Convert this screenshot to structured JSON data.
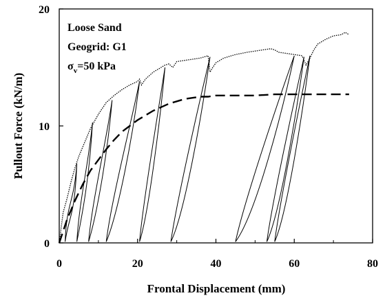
{
  "chart_data": {
    "type": "line",
    "xlabel": "Frontal Displacement (mm)",
    "ylabel": "Pullout Force (kN/m)",
    "xlim": [
      0,
      80
    ],
    "ylim": [
      0,
      20
    ],
    "x_ticks": [
      "0",
      "20",
      "40",
      "60",
      "80"
    ],
    "y_ticks": [
      "0",
      "10",
      "20"
    ],
    "grid": false,
    "annotations": {
      "line1": "Loose Sand",
      "line2": "Geogrid: G1",
      "line3_main": "σ",
      "line3_sub": "v",
      "line3_rest": "=50 kPa"
    },
    "series": [
      {
        "style": "dotted",
        "x": [
          0,
          1,
          2,
          3,
          4,
          5,
          6,
          7,
          8,
          9,
          10,
          11,
          12,
          13,
          14,
          16,
          18,
          20,
          20.5,
          21,
          22,
          24,
          25,
          26,
          27,
          28,
          29,
          30,
          32,
          34,
          36,
          38,
          38.5,
          39,
          40,
          42,
          45,
          48,
          50,
          52,
          54,
          55,
          56,
          58,
          60,
          62,
          63,
          64,
          65,
          66,
          68,
          70,
          72,
          73,
          74
        ],
        "y": [
          0,
          2.6,
          3.8,
          5.2,
          6.4,
          7.4,
          8.2,
          9.0,
          9.8,
          10.4,
          11.0,
          11.5,
          12.0,
          12.3,
          12.6,
          13.1,
          13.5,
          13.8,
          14.0,
          13.5,
          14.0,
          14.6,
          14.8,
          15.0,
          15.2,
          15.3,
          15.0,
          15.5,
          15.6,
          15.7,
          15.8,
          16.0,
          14.6,
          14.9,
          15.4,
          15.8,
          16.1,
          16.3,
          16.4,
          16.5,
          16.6,
          16.5,
          16.3,
          16.2,
          16.1,
          16.0,
          15.2,
          15.8,
          16.5,
          17.0,
          17.4,
          17.7,
          17.8,
          18.0,
          17.8
        ]
      },
      {
        "style": "solid",
        "x": [
          1,
          2,
          3,
          4,
          5,
          6,
          7,
          8,
          9,
          10,
          11,
          12,
          13,
          14,
          15,
          16,
          17,
          18,
          19,
          20,
          21,
          22,
          23,
          24,
          25,
          26,
          27,
          28,
          29,
          30,
          31,
          32,
          33,
          34,
          35,
          36,
          37,
          38,
          39,
          40,
          41,
          42,
          43,
          44,
          45,
          46,
          47,
          48,
          49,
          50,
          51,
          52,
          53,
          54,
          55,
          56,
          57,
          58,
          59,
          60,
          61,
          62,
          63,
          64,
          65,
          66,
          67,
          68,
          69,
          70,
          71,
          72,
          73,
          74
        ],
        "y": [
          2.0,
          3.8,
          5.2,
          6.4,
          7.4,
          8.2,
          9.0,
          9.8,
          10.4,
          11.0,
          11.5,
          12.0,
          12.3,
          12.6,
          12.9,
          13.1,
          13.3,
          13.5,
          13.6,
          13.8,
          14.0,
          14.2,
          14.4,
          14.6,
          14.7,
          14.8,
          14.9,
          15.0,
          15.1,
          15.2,
          15.3,
          15.4,
          15.5,
          15.5,
          15.6,
          15.7,
          15.7,
          15.8,
          15.8,
          15.9,
          15.9,
          16.0,
          16.0,
          16.1,
          16.1,
          16.2,
          16.2,
          16.3,
          16.3,
          16.4,
          16.4,
          16.4,
          16.5,
          16.5,
          16.5,
          16.5,
          16.6,
          16.6,
          16.6,
          16.6,
          16.7,
          16.7,
          16.8,
          16.9,
          17.0,
          17.1,
          17.2,
          17.3,
          17.4,
          17.5,
          17.6,
          17.7,
          17.8,
          17.8
        ]
      },
      {
        "style": "dashed",
        "x": [
          0,
          2,
          4,
          6,
          8,
          10,
          12,
          14,
          16,
          18,
          20,
          22,
          24,
          26,
          28,
          30,
          32,
          34,
          36,
          38,
          40,
          45,
          50,
          55,
          60,
          65,
          70,
          74
        ],
        "y": [
          0,
          2.0,
          3.6,
          5.0,
          6.2,
          7.1,
          8.0,
          8.8,
          9.5,
          10.0,
          10.5,
          10.9,
          11.3,
          11.6,
          11.9,
          12.1,
          12.3,
          12.4,
          12.5,
          12.5,
          12.6,
          12.6,
          12.6,
          12.7,
          12.7,
          12.7,
          12.7,
          12.7
        ]
      }
    ],
    "loops": [
      {
        "x0": 1.5,
        "x1": 4.5,
        "ytop": 6.8
      },
      {
        "x0": 4.5,
        "x1": 8.5,
        "ytop": 10.3
      },
      {
        "x0": 7.5,
        "x1": 13.5,
        "ytop": 12.2
      },
      {
        "x0": 12.0,
        "x1": 20.5,
        "ytop": 13.8
      },
      {
        "x0": 20.5,
        "x1": 27.0,
        "ytop": 15.0
      },
      {
        "x0": 28.5,
        "x1": 38.5,
        "ytop": 15.9
      },
      {
        "x0": 45.0,
        "x1": 60.0,
        "ytop": 16.0
      },
      {
        "x0": 53.0,
        "x1": 62.5,
        "ytop": 15.9
      },
      {
        "x0": 55.0,
        "x1": 64.0,
        "ytop": 16.0
      }
    ]
  }
}
